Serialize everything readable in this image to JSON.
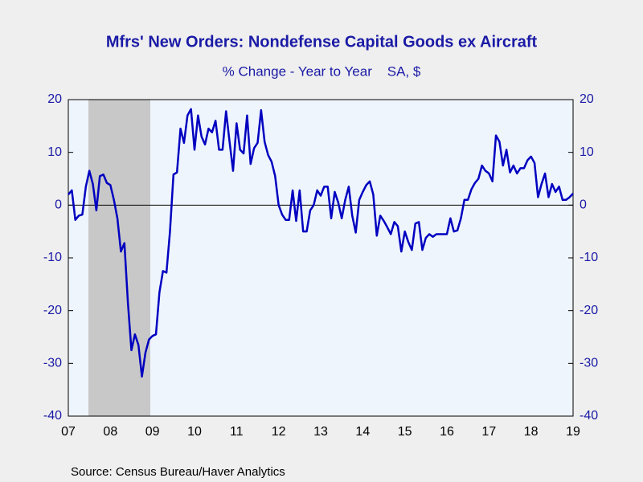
{
  "chart_data": {
    "type": "line",
    "title": "Mfrs' New Orders: Nondefense Capital Goods ex Aircraft",
    "subtitle": "% Change - Year to Year    SA, $",
    "source": "Source:  Census Bureau/Haver Analytics",
    "categories": [
      "07",
      null,
      null,
      null,
      null,
      null,
      null,
      null,
      null,
      null,
      null,
      null,
      "08",
      null,
      null,
      null,
      null,
      null,
      null,
      null,
      null,
      null,
      null,
      null,
      "09",
      null,
      null,
      null,
      null,
      null,
      null,
      null,
      null,
      null,
      null,
      null,
      "10",
      null,
      null,
      null,
      null,
      null,
      null,
      null,
      null,
      null,
      null,
      null,
      "11",
      null,
      null,
      null,
      null,
      null,
      null,
      null,
      null,
      null,
      null,
      null,
      "12",
      null,
      null,
      null,
      null,
      null,
      null,
      null,
      null,
      null,
      null,
      null,
      "13",
      null,
      null,
      null,
      null,
      null,
      null,
      null,
      null,
      null,
      null,
      null,
      "14",
      null,
      null,
      null,
      null,
      null,
      null,
      null,
      null,
      null,
      null,
      null,
      "15",
      null,
      null,
      null,
      null,
      null,
      null,
      null,
      null,
      null,
      null,
      null,
      "16",
      null,
      null,
      null,
      null,
      null,
      null,
      null,
      null,
      null,
      null,
      null,
      "17",
      null,
      null,
      null,
      null,
      null,
      null,
      null,
      null,
      null,
      null,
      null,
      "18",
      null,
      null,
      null,
      null,
      null,
      null,
      null,
      null,
      null,
      null,
      null,
      "19"
    ],
    "series": [
      {
        "name": "Mfrs' New Orders: Nondefense Capital Goods ex Aircraft",
        "color": "#0000c0",
        "values": [
          2.0,
          2.8,
          -2.8,
          -2.0,
          -1.8,
          3.5,
          6.5,
          4.0,
          -1.0,
          5.5,
          5.8,
          4.2,
          3.8,
          1.0,
          -2.5,
          -8.8,
          -7.2,
          -18.5,
          -27.5,
          -24.5,
          -26.5,
          -32.5,
          -28.0,
          -25.5,
          -24.8,
          -24.5,
          -16.5,
          -12.5,
          -12.8,
          -5.0,
          5.8,
          6.2,
          14.5,
          11.8,
          17.0,
          18.2,
          10.5,
          17.0,
          13.0,
          11.5,
          14.5,
          13.8,
          16.0,
          10.5,
          10.5,
          17.8,
          12.0,
          6.5,
          15.5,
          10.5,
          9.8,
          17.0,
          7.8,
          10.8,
          11.8,
          18.0,
          12.0,
          9.5,
          8.2,
          5.5,
          0.0,
          -1.8,
          -2.8,
          -2.8,
          2.8,
          -3.0,
          2.8,
          -5.0,
          -5.0,
          -1.0,
          0.0,
          2.8,
          1.8,
          3.5,
          3.5,
          -2.5,
          2.5,
          0.5,
          -2.5,
          1.0,
          3.5,
          -2.0,
          -5.2,
          1.0,
          2.5,
          3.8,
          4.5,
          2.0,
          -5.8,
          -2.0,
          -3.0,
          -4.2,
          -5.5,
          -3.2,
          -4.0,
          -8.8,
          -5.0,
          -7.0,
          -8.5,
          -3.5,
          -3.2,
          -8.5,
          -6.2,
          -5.5,
          -6.0,
          -5.5,
          -5.5,
          -5.5,
          -5.5,
          -2.5,
          -5.0,
          -4.8,
          -2.5,
          1.0,
          1.0,
          3.0,
          4.2,
          5.0,
          7.5,
          6.5,
          6.0,
          4.5,
          13.2,
          12.0,
          7.5,
          10.5,
          6.2,
          7.5,
          6.0,
          7.0,
          7.0,
          8.5,
          9.2,
          8.0,
          1.5,
          4.0,
          6.0,
          1.5,
          4.0,
          2.5,
          3.5,
          1.0,
          1.0,
          1.5,
          2.2
        ]
      }
    ],
    "ylim": [
      -40,
      20
    ],
    "yticks": [
      -40,
      -30,
      -20,
      -10,
      0,
      10,
      20
    ],
    "y2lim": [
      -40,
      20
    ],
    "y2ticks": [
      -40,
      -30,
      -20,
      -10,
      0,
      10,
      20
    ]
  }
}
